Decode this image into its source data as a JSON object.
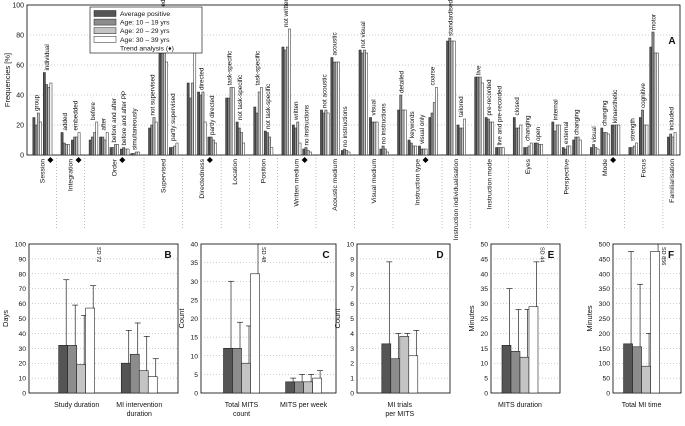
{
  "colors": {
    "avg": "#555555",
    "g1": "#8c8c8c",
    "g2": "#c4c4c4",
    "g3": "#ffffff",
    "stroke": "#222222"
  },
  "chart_data": [
    {
      "type": "bar",
      "panel": "A",
      "ylabel": "Frequencies [%]",
      "ylim": [
        0,
        100
      ],
      "yticks": [
        0,
        20,
        40,
        60,
        80,
        100
      ],
      "legend": {
        "placement": "top-left",
        "entries": [
          "Average positive",
          "Age: 10 – 19 yrs",
          "Age: 20 – 29 yrs",
          "Age: 30 – 39 yrs",
          "Trend analysis (♦)"
        ]
      },
      "series_names": [
        "Average positive",
        "Age: 10 – 19 yrs",
        "Age: 20 – 29 yrs",
        "Age: 30 – 39 yrs"
      ],
      "groups": [
        {
          "label": "Session",
          "trend": true,
          "items": [
            {
              "label": "group",
              "values": [
                25,
                20,
                28,
                22
              ]
            },
            {
              "label": "individual",
              "values": [
                55,
                47,
                45,
                48
              ]
            }
          ]
        },
        {
          "label": "Integration",
          "trend": true,
          "items": [
            {
              "label": "added",
              "values": [
                15,
                8,
                7,
                7
              ]
            },
            {
              "label": "embedded",
              "values": [
                10,
                12,
                12,
                15
              ]
            }
          ]
        },
        {
          "label": "Order",
          "trend": true,
          "items": [
            {
              "label": "before",
              "values": [
                10,
                12,
                15,
                22
              ]
            },
            {
              "label": "after",
              "values": [
                12,
                12,
                10,
                15
              ]
            },
            {
              "label": "before and after",
              "values": [
                5,
                5,
                7,
                7
              ]
            },
            {
              "label": "before and after PP",
              "values": [
                4,
                5,
                4,
                4
              ]
            },
            {
              "label": "simultaneously",
              "values": [
                1,
                1,
                2,
                2
              ]
            }
          ]
        },
        {
          "label": "Supervised",
          "trend": false,
          "items": [
            {
              "label": "not supervised",
              "values": [
                18,
                20,
                25,
                22
              ]
            },
            {
              "label": "supervised",
              "values": [
                72,
                72,
                82,
                62
              ]
            },
            {
              "label": "partly supervised",
              "values": [
                5,
                5,
                6,
                8
              ]
            }
          ]
        },
        {
          "label": "Directedness",
          "trend": true,
          "items": [
            {
              "label": "non-directed",
              "values": [
                48,
                38,
                48,
                70
              ]
            },
            {
              "label": "directed",
              "values": [
                42,
                40,
                42,
                22
              ]
            },
            {
              "label": "partly directed",
              "values": [
                12,
                12,
                10,
                8
              ]
            }
          ]
        },
        {
          "label": "Location",
          "trend": false,
          "items": [
            {
              "label": "task-specific",
              "values": [
                38,
                38,
                45,
                45
              ]
            },
            {
              "label": "not task-specific",
              "values": [
                22,
                18,
                15,
                8
              ]
            }
          ]
        },
        {
          "label": "Position",
          "trend": false,
          "items": [
            {
              "label": "task-specific",
              "values": [
                32,
                28,
                42,
                45
              ]
            },
            {
              "label": "not task-specific",
              "values": [
                16,
                15,
                12,
                5
              ]
            }
          ]
        },
        {
          "label": "Written medium",
          "trend": true,
          "items": [
            {
              "label": "not written",
              "values": [
                72,
                70,
                72,
                84
              ]
            },
            {
              "label": "written",
              "values": [
                20,
                18,
                22,
                8
              ]
            },
            {
              "label": "no instructions",
              "values": [
                4,
                5,
                3,
                2
              ]
            }
          ]
        },
        {
          "label": "Acoustic medium",
          "trend": false,
          "items": [
            {
              "label": "not acoustic",
              "values": [
                30,
                28,
                30,
                28
              ]
            },
            {
              "label": "acoustic",
              "values": [
                65,
                62,
                62,
                62
              ]
            },
            {
              "label": "no instructions",
              "values": [
                3,
                4,
                3,
                2
              ]
            }
          ]
        },
        {
          "label": "Visual medium",
          "trend": false,
          "items": [
            {
              "label": "not visual",
              "values": [
                70,
                68,
                70,
                68
              ]
            },
            {
              "label": "visual",
              "values": [
                25,
                22,
                22,
                22
              ]
            },
            {
              "label": "no instructions",
              "values": [
                4,
                6,
                4,
                2
              ]
            }
          ]
        },
        {
          "label": "Instruction type",
          "trend": true,
          "items": [
            {
              "label": "detailed",
              "values": [
                30,
                40,
                30,
                30
              ]
            },
            {
              "label": "keywords",
              "values": [
                10,
                8,
                6,
                6
              ]
            },
            {
              "label": "visual only",
              "values": [
                6,
                4,
                4,
                4
              ]
            },
            {
              "label": "coarse",
              "values": [
                25,
                28,
                35,
                45
              ]
            }
          ]
        },
        {
          "label": "Instruction individualisation",
          "trend": false,
          "items": [
            {
              "label": "standardised",
              "values": [
                76,
                78,
                76,
                76
              ]
            },
            {
              "label": "tailored",
              "values": [
                20,
                18,
                18,
                24
              ]
            }
          ]
        },
        {
          "label": "Instruction mode",
          "trend": false,
          "items": [
            {
              "label": "live",
              "values": [
                52,
                52,
                52,
                48
              ]
            },
            {
              "label": "pre-recorded",
              "values": [
                25,
                24,
                22,
                22
              ]
            },
            {
              "label": "live and pre-recorded",
              "values": [
                5,
                5,
                5,
                5
              ]
            }
          ]
        },
        {
          "label": "Eyes",
          "trend": false,
          "items": [
            {
              "label": "closed",
              "values": [
                25,
                18,
                18,
                20
              ]
            },
            {
              "label": "changing",
              "values": [
                5,
                5,
                6,
                8
              ]
            },
            {
              "label": "open",
              "values": [
                8,
                8,
                7,
                7
              ]
            }
          ]
        },
        {
          "label": "Perspective",
          "trend": false,
          "items": [
            {
              "label": "internal",
              "values": [
                22,
                16,
                20,
                20
              ]
            },
            {
              "label": "external",
              "values": [
                5,
                4,
                6,
                6
              ]
            },
            {
              "label": "changing",
              "values": [
                10,
                12,
                12,
                10
              ]
            }
          ]
        },
        {
          "label": "Mode",
          "trend": true,
          "items": [
            {
              "label": "visual",
              "values": [
                5,
                7,
                5,
                4
              ]
            },
            {
              "label": "changing",
              "values": [
                18,
                15,
                15,
                14
              ]
            },
            {
              "label": "kinaesthetic",
              "values": [
                20,
                20,
                20,
                20
              ]
            }
          ]
        },
        {
          "label": "Focus",
          "trend": false,
          "items": [
            {
              "label": "strength",
              "values": [
                5,
                5,
                6,
                8
              ]
            },
            {
              "label": "cognitive",
              "values": [
                25,
                30,
                20,
                20
              ]
            },
            {
              "label": "motor",
              "values": [
                72,
                82,
                68,
                68
              ]
            }
          ]
        },
        {
          "label": "Familiarisation",
          "trend": false,
          "items": [
            {
              "label": "included",
              "values": [
                12,
                14,
                12,
                15
              ]
            }
          ]
        }
      ]
    },
    {
      "type": "bar",
      "panel": "B",
      "ylabel": "Days",
      "ylim": [
        0,
        100
      ],
      "yticks": [
        0,
        10,
        20,
        30,
        40,
        50,
        60,
        70,
        80,
        90,
        100
      ],
      "categories": [
        "Study duration",
        "MI intervention duration"
      ],
      "values": [
        [
          32,
          32,
          19,
          57
        ],
        [
          20,
          26,
          15,
          11
        ]
      ],
      "errors": [
        [
          76,
          59,
          52,
          72
        ],
        [
          42,
          47,
          38,
          23
        ]
      ],
      "annotation": "SD 72"
    },
    {
      "type": "bar",
      "panel": "C",
      "ylabel": "Count",
      "ylim": [
        0,
        40
      ],
      "yticks": [
        0,
        5,
        10,
        15,
        20,
        25,
        30,
        35,
        40
      ],
      "categories": [
        "Total MITS count",
        "MITS per week"
      ],
      "values": [
        [
          12,
          12,
          8,
          32
        ],
        [
          3,
          3,
          3,
          4
        ]
      ],
      "errors": [
        [
          30,
          19,
          18,
          48
        ],
        [
          4,
          5,
          5,
          6
        ]
      ],
      "annotation": "SD 48"
    },
    {
      "type": "bar",
      "panel": "D",
      "ylabel": "Count",
      "ylim": [
        0,
        10
      ],
      "yticks": [
        0,
        1,
        2,
        3,
        4,
        5,
        6,
        7,
        8,
        9,
        10
      ],
      "categories": [
        "MI trials per MITS"
      ],
      "values": [
        [
          3.3,
          2.3,
          3.8,
          2.5
        ]
      ],
      "errors": [
        [
          8.8,
          4.0,
          4.0,
          4.2
        ]
      ],
      "annotation": ""
    },
    {
      "type": "bar",
      "panel": "E",
      "ylabel": "Minutes",
      "ylim": [
        0,
        50
      ],
      "yticks": [
        0,
        5,
        10,
        15,
        20,
        25,
        30,
        35,
        40,
        45,
        50
      ],
      "categories": [
        "MITS duration"
      ],
      "values": [
        [
          16,
          14,
          12,
          29
        ]
      ],
      "errors": [
        [
          35,
          28,
          28,
          44
        ]
      ],
      "annotation": "SD 44"
    },
    {
      "type": "bar",
      "panel": "F",
      "ylabel": "Minutes",
      "ylim": [
        0,
        500
      ],
      "yticks": [
        0,
        50,
        100,
        150,
        200,
        250,
        300,
        350,
        400,
        450,
        500
      ],
      "categories": [
        "Total MI time"
      ],
      "values": [
        [
          165,
          155,
          90,
          475
        ]
      ],
      "errors": [
        [
          475,
          365,
          200,
          856
        ]
      ],
      "annotation": "SD 856"
    }
  ]
}
